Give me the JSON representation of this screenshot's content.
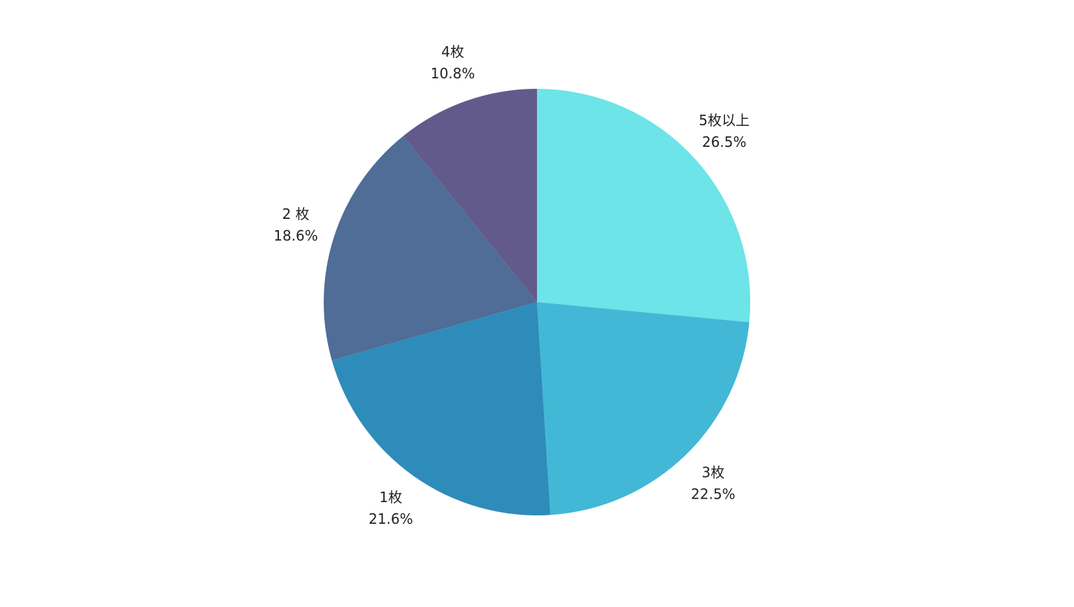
{
  "chart_data": {
    "type": "pie",
    "categories": [
      "5枚以上",
      "3枚",
      "1枚",
      "2 枚",
      "4枚"
    ],
    "values": [
      26.5,
      22.5,
      21.6,
      18.6,
      10.8
    ],
    "value_labels": [
      "26.5%",
      "22.5%",
      "21.6%",
      "18.6%",
      "10.8%"
    ],
    "colors": [
      "#6ce4e8",
      "#42b8d6",
      "#2e8cba",
      "#4f6d96",
      "#635a8c"
    ]
  }
}
